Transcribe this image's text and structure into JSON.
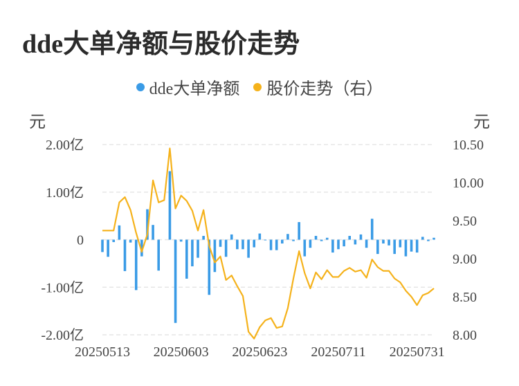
{
  "title": "dde大单净额与股价走势",
  "legend": [
    {
      "label": "dde大单净额",
      "color": "#3a9be6"
    },
    {
      "label": "股价走势（右）",
      "color": "#f5b21b"
    }
  ],
  "left_unit": "元",
  "right_unit": "元",
  "chart_data": {
    "type": "bar+line",
    "x_tick_labels": [
      "20250513",
      "20250603",
      "20250623",
      "20250711",
      "20250731"
    ],
    "y_left_tick_labels": [
      "2.00亿",
      "1.00亿",
      "0",
      "-1.00亿",
      "-2.00亿"
    ],
    "y_right_tick_labels": [
      "10.50",
      "10.00",
      "9.50",
      "9.00",
      "8.50",
      "8.00"
    ],
    "y_left_range": [
      -2.0,
      2.0
    ],
    "y_right_range": [
      8.0,
      10.5
    ],
    "y_left_unit_label": "亿",
    "series": [
      {
        "name": "dde大单净额",
        "type": "bar",
        "axis": "left",
        "color": "#3a9be6",
        "values": [
          -0.26,
          -0.36,
          -0.05,
          0.3,
          -0.66,
          -0.06,
          -1.06,
          -0.35,
          0.64,
          0.31,
          -0.65,
          0.0,
          1.44,
          -1.75,
          -0.04,
          -0.82,
          -0.56,
          -0.38,
          0.08,
          -1.16,
          -0.68,
          -0.15,
          -0.36,
          0.11,
          -0.2,
          -0.2,
          -0.38,
          -0.16,
          0.13,
          -0.01,
          -0.22,
          -0.22,
          -0.08,
          0.12,
          -0.03,
          0.37,
          -0.35,
          -0.17,
          0.08,
          -0.03,
          0.04,
          -0.27,
          -0.2,
          -0.14,
          0.08,
          -0.1,
          0.11,
          -0.17,
          0.44,
          -0.3,
          -0.08,
          -0.12,
          -0.3,
          -0.16,
          -0.35,
          -0.25,
          -0.27,
          0.06,
          -0.03,
          0.04
        ]
      },
      {
        "name": "股价走势（右）",
        "type": "line",
        "axis": "right",
        "color": "#f5b21b",
        "values": [
          9.37,
          9.37,
          9.37,
          9.74,
          9.81,
          9.64,
          9.34,
          9.09,
          9.32,
          10.03,
          9.74,
          9.77,
          10.45,
          9.66,
          9.83,
          9.76,
          9.63,
          9.37,
          9.64,
          9.17,
          8.95,
          9.03,
          8.72,
          8.78,
          8.64,
          8.51,
          8.04,
          7.95,
          8.1,
          8.19,
          8.22,
          8.09,
          8.11,
          8.35,
          8.74,
          9.1,
          8.81,
          8.61,
          8.82,
          8.73,
          8.85,
          8.76,
          8.76,
          8.84,
          8.88,
          8.83,
          8.85,
          8.75,
          8.99,
          8.89,
          8.84,
          8.84,
          8.74,
          8.69,
          8.58,
          8.5,
          8.39,
          8.52,
          8.55,
          8.61
        ]
      }
    ]
  }
}
